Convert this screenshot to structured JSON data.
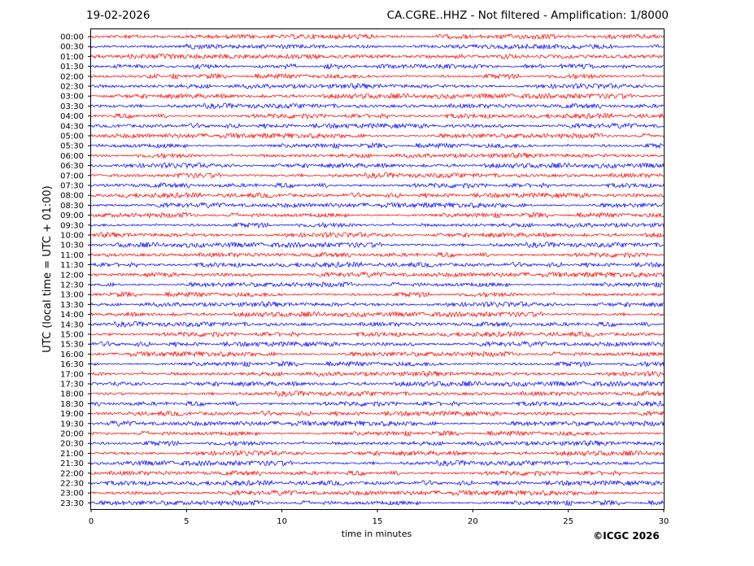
{
  "header": {
    "date": "19-02-2026",
    "title": "CA.CGRE..HHZ - Not filtered - Amplification: 1/8000"
  },
  "footer": {
    "copyright": "©ICGC 2026"
  },
  "chart_data": {
    "type": "line",
    "title": "CA.CGRE..HHZ - Not filtered - Amplification: 1/8000",
    "xlabel": "time in minutes",
    "ylabel": "UTC (local time = UTC + 01:00)",
    "xlim": [
      0,
      30
    ],
    "xticks": [
      0,
      5,
      10,
      15,
      20,
      25,
      30
    ],
    "row_labels": [
      "00:00",
      "00:30",
      "01:00",
      "01:30",
      "02:00",
      "02:30",
      "03:00",
      "03:30",
      "04:00",
      "04:30",
      "05:00",
      "05:30",
      "06:00",
      "06:30",
      "07:00",
      "07:30",
      "08:00",
      "08:30",
      "09:00",
      "09:30",
      "10:00",
      "10:30",
      "11:00",
      "11:30",
      "12:00",
      "12:30",
      "13:00",
      "13:30",
      "14:00",
      "14:30",
      "15:00",
      "15:30",
      "16:00",
      "16:30",
      "17:00",
      "17:30",
      "18:00",
      "18:30",
      "19:00",
      "19:30",
      "20:00",
      "20:30",
      "21:00",
      "21:30",
      "22:00",
      "22:30",
      "23:00",
      "23:30"
    ],
    "trace_colors": [
      "#ff0000",
      "#0000ff"
    ],
    "grid": true
  }
}
